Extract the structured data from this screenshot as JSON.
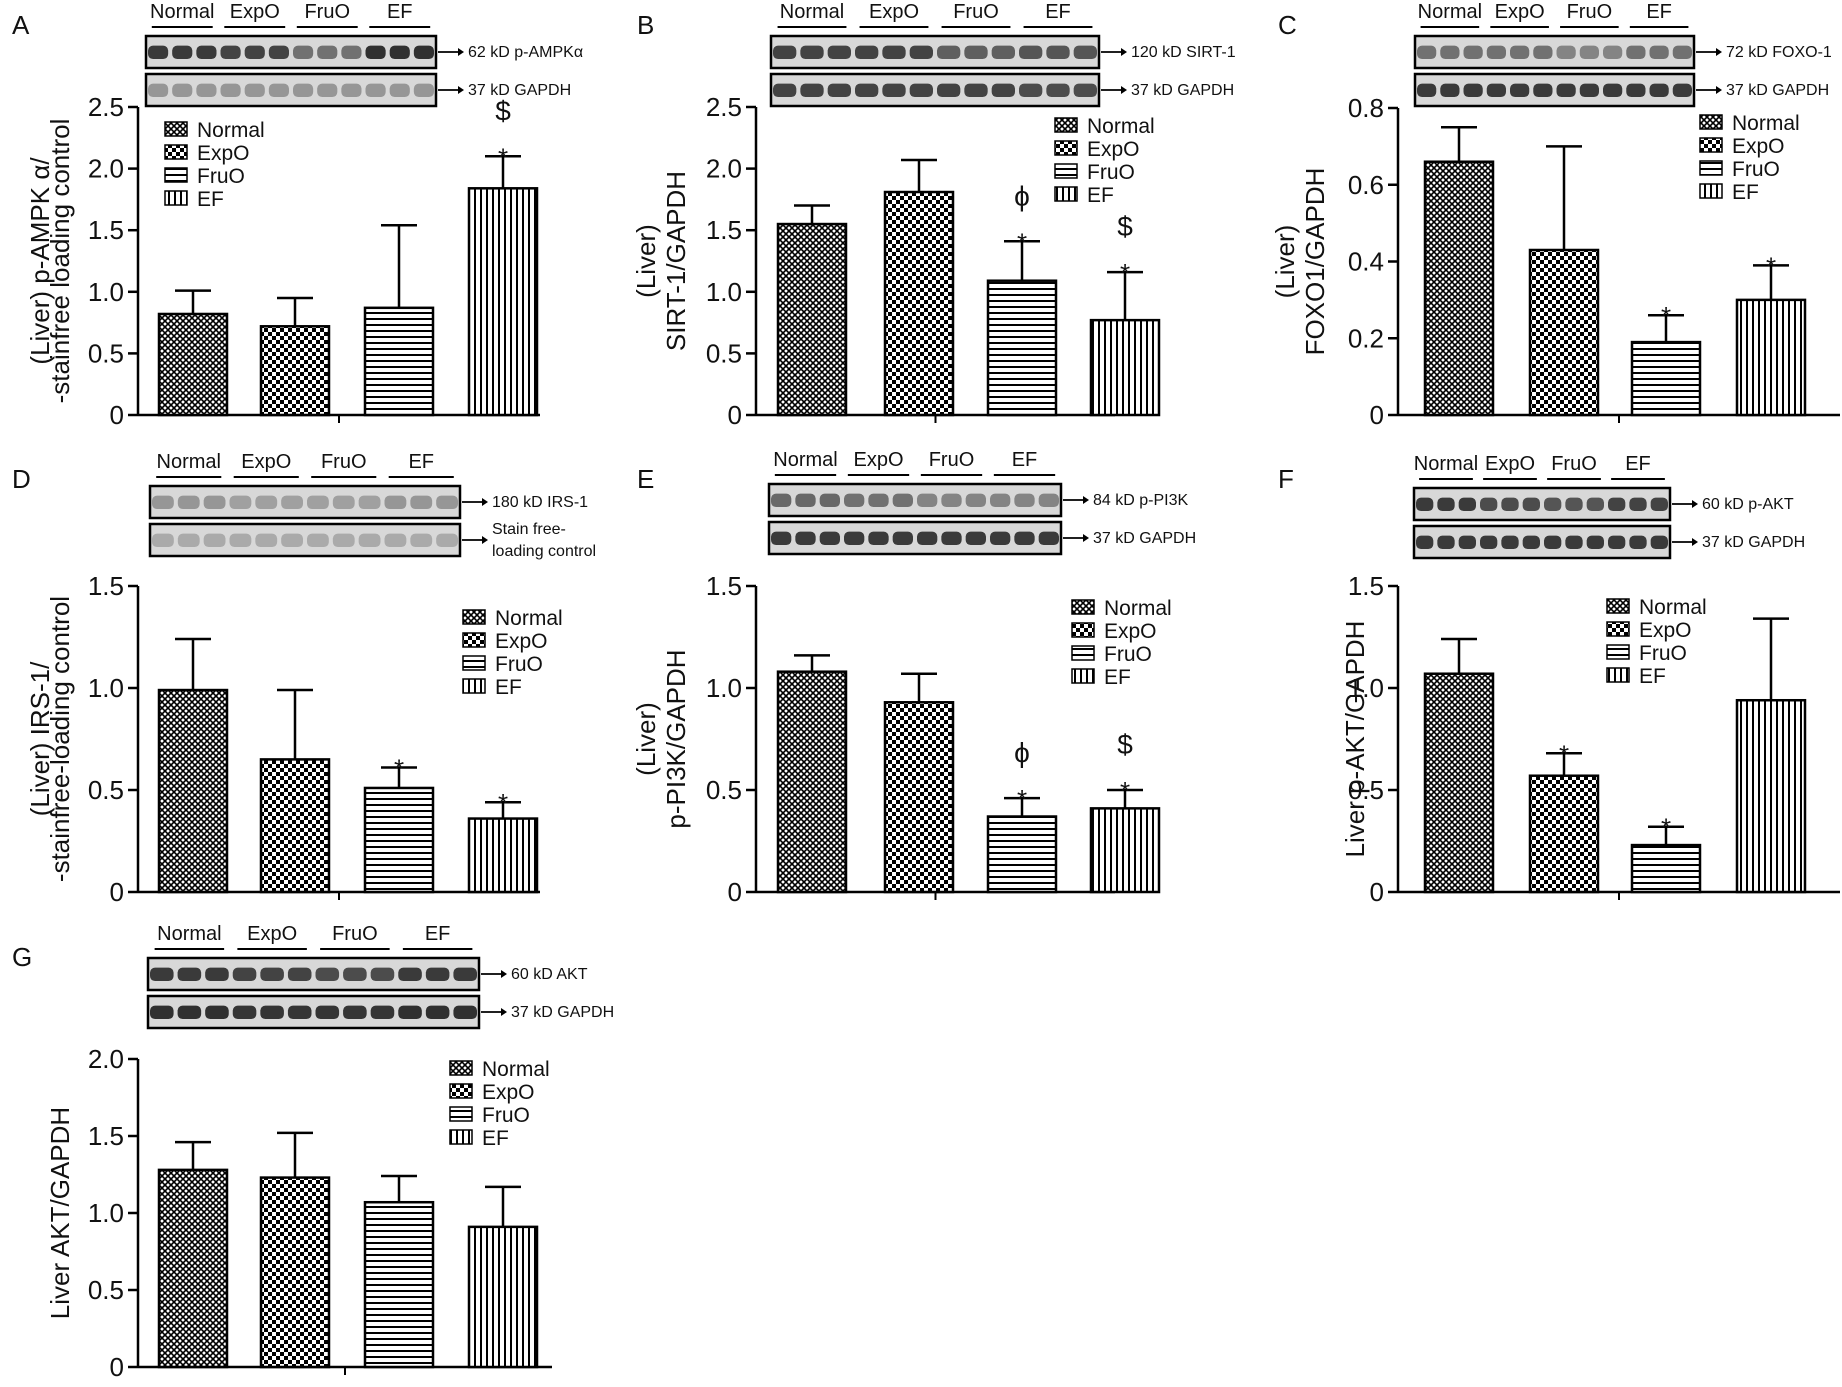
{
  "figure": {
    "legend_labels": [
      "Normal",
      "ExpO",
      "FruO",
      "EF"
    ],
    "band_color": "#1e1e1e",
    "bar_outline_color": "#000000"
  },
  "chart_data": [
    {
      "panel": "A",
      "type": "bar",
      "categories": [
        "Normal",
        "ExpO",
        "FruO",
        "EF"
      ],
      "values": [
        0.82,
        0.72,
        0.87,
        1.84
      ],
      "errors": [
        0.19,
        0.23,
        0.67,
        0.26
      ],
      "sig": [
        "",
        "",
        "",
        "*\n$"
      ],
      "ylabel_lines": [
        "(Liver) p-AMPK α/",
        "-stainfree loading control"
      ],
      "ylim": [
        0,
        2.5
      ],
      "yticks": [
        "0",
        "0.5",
        "1.0",
        "1.5",
        "2.0",
        "2.5"
      ],
      "ytick_values": [
        0,
        0.5,
        1.0,
        1.5,
        2.0,
        2.5
      ],
      "blot_lanes": [
        "Normal",
        "ExpO",
        "FruO",
        "EF"
      ],
      "blots": [
        {
          "label": "62 kD p-AMPKα",
          "intensity": [
            0.85,
            0.8,
            0.55,
            0.9
          ]
        },
        {
          "label": "37 kD GAPDH",
          "intensity": [
            0.35,
            0.35,
            0.35,
            0.35
          ]
        }
      ],
      "legend_placement": "top-left"
    },
    {
      "panel": "B",
      "type": "bar",
      "categories": [
        "Normal",
        "ExpO",
        "FruO",
        "EF"
      ],
      "values": [
        1.55,
        1.81,
        1.09,
        0.77
      ],
      "errors": [
        0.15,
        0.26,
        0.32,
        0.39
      ],
      "sig": [
        "",
        "",
        "*\nϕ",
        "*\n$"
      ],
      "ylabel_lines": [
        "(Liver)",
        "SIRT-1/GAPDH"
      ],
      "ylim": [
        0,
        2.5
      ],
      "yticks": [
        "0",
        "0.5",
        "1.0",
        "1.5",
        "2.0",
        "2.5"
      ],
      "ytick_values": [
        0,
        0.5,
        1.0,
        1.5,
        2.0,
        2.5
      ],
      "blot_lanes": [
        "Normal",
        "ExpO",
        "FruO",
        "EF"
      ],
      "blots": [
        {
          "label": "120 kD SIRT-1",
          "intensity": [
            0.8,
            0.8,
            0.65,
            0.7
          ]
        },
        {
          "label": "37 kD GAPDH",
          "intensity": [
            0.8,
            0.8,
            0.8,
            0.75
          ]
        }
      ],
      "legend_placement": "top-right"
    },
    {
      "panel": "C",
      "type": "bar",
      "categories": [
        "Normal",
        "ExpO",
        "FruO",
        "EF"
      ],
      "values": [
        0.66,
        0.43,
        0.19,
        0.3
      ],
      "errors": [
        0.09,
        0.27,
        0.07,
        0.09
      ],
      "sig": [
        "",
        "",
        "*",
        "*"
      ],
      "ylabel_lines": [
        "(Liver)",
        "FOXO1/GAPDH"
      ],
      "ylim": [
        0,
        0.8
      ],
      "yticks": [
        "0",
        "0.2",
        "0.4",
        "0.6",
        "0.8"
      ],
      "ytick_values": [
        0,
        0.2,
        0.4,
        0.6,
        0.8
      ],
      "blot_lanes": [
        "Normal",
        "ExpO",
        "FruO",
        "EF"
      ],
      "blots": [
        {
          "label": "72 kD FOXO-1",
          "intensity": [
            0.55,
            0.55,
            0.45,
            0.55
          ]
        },
        {
          "label": "37 kD GAPDH",
          "intensity": [
            0.85,
            0.85,
            0.85,
            0.85
          ]
        }
      ],
      "legend_placement": "top-right"
    },
    {
      "panel": "D",
      "type": "bar",
      "categories": [
        "Normal",
        "ExpO",
        "FruO",
        "EF"
      ],
      "values": [
        0.99,
        0.65,
        0.51,
        0.36
      ],
      "errors": [
        0.25,
        0.34,
        0.1,
        0.08
      ],
      "sig": [
        "",
        "",
        "*",
        "*"
      ],
      "ylabel_lines": [
        "(Liver) IRS-1/",
        "-stainfree-loading control"
      ],
      "ylim": [
        0,
        1.5
      ],
      "yticks": [
        "0",
        "0.5",
        "1.0",
        "1.5"
      ],
      "ytick_values": [
        0,
        0.5,
        1.0,
        1.5
      ],
      "blot_lanes": [
        "Normal",
        "ExpO",
        "FruO",
        "EF"
      ],
      "blots": [
        {
          "label": "180 kD IRS-1",
          "intensity": [
            0.35,
            0.3,
            0.3,
            0.35
          ]
        },
        {
          "label": "Stain free-\nloading control",
          "intensity": [
            0.25,
            0.25,
            0.25,
            0.25
          ]
        }
      ],
      "legend_placement": "top-right"
    },
    {
      "panel": "E",
      "type": "bar",
      "categories": [
        "Normal",
        "ExpO",
        "FruO",
        "EF"
      ],
      "values": [
        1.08,
        0.93,
        0.37,
        0.41
      ],
      "errors": [
        0.08,
        0.14,
        0.09,
        0.09
      ],
      "sig": [
        "",
        "",
        "*\nϕ",
        "*\n$"
      ],
      "ylabel_lines": [
        "(Liver)",
        "p-PI3K/GAPDH"
      ],
      "ylim": [
        0,
        1.5
      ],
      "yticks": [
        "0",
        "0.5",
        "1.0",
        "1.5"
      ],
      "ytick_values": [
        0,
        0.5,
        1.0,
        1.5
      ],
      "blot_lanes": [
        "Normal",
        "ExpO",
        "FruO",
        "EF"
      ],
      "blots": [
        {
          "label": "84 kD p-PI3K",
          "intensity": [
            0.6,
            0.55,
            0.45,
            0.45
          ]
        },
        {
          "label": "37 kD GAPDH",
          "intensity": [
            0.85,
            0.85,
            0.85,
            0.85
          ]
        }
      ],
      "legend_placement": "top-right"
    },
    {
      "panel": "F",
      "type": "bar",
      "categories": [
        "Normal",
        "ExpO",
        "FruO",
        "EF"
      ],
      "values": [
        1.07,
        0.57,
        0.23,
        0.94
      ],
      "errors": [
        0.17,
        0.11,
        0.09,
        0.4
      ],
      "sig": [
        "",
        "*",
        "*",
        ""
      ],
      "ylabel_lines": [
        "Liver p-AKT/GAPDH"
      ],
      "ylim": [
        0,
        1.5
      ],
      "yticks": [
        "0",
        "0.5",
        "1.0",
        "1.5"
      ],
      "ytick_values": [
        0,
        0.5,
        1.0,
        1.5
      ],
      "blot_lanes": [
        "Normal",
        "ExpO",
        "FruO",
        "EF"
      ],
      "blots": [
        {
          "label": "60 kD p-AKT",
          "intensity": [
            0.85,
            0.75,
            0.7,
            0.8
          ]
        },
        {
          "label": "37 kD GAPDH",
          "intensity": [
            0.85,
            0.85,
            0.85,
            0.85
          ]
        }
      ],
      "legend_placement": "top-center"
    },
    {
      "panel": "G",
      "type": "bar",
      "categories": [
        "Normal",
        "ExpO",
        "FruO",
        "EF"
      ],
      "values": [
        1.28,
        1.23,
        1.07,
        0.91
      ],
      "errors": [
        0.18,
        0.29,
        0.17,
        0.26
      ],
      "sig": [
        "",
        "",
        "",
        ""
      ],
      "ylabel_lines": [
        "Liver AKT/GAPDH"
      ],
      "ylim": [
        0,
        2.0
      ],
      "yticks": [
        "0",
        "0.5",
        "1.0",
        "1.5",
        "2.0"
      ],
      "ytick_values": [
        0,
        0.5,
        1.0,
        1.5,
        2.0
      ],
      "blot_lanes": [
        "Normal",
        "ExpO",
        "FruO",
        "EF"
      ],
      "blots": [
        {
          "label": "60 kD AKT",
          "intensity": [
            0.85,
            0.8,
            0.75,
            0.85
          ]
        },
        {
          "label": "37 kD GAPDH",
          "intensity": [
            0.9,
            0.88,
            0.88,
            0.9
          ]
        }
      ],
      "legend_placement": "top-right"
    }
  ]
}
